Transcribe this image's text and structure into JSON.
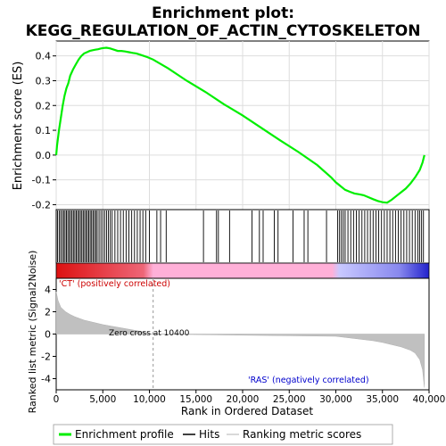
{
  "chart_data": {
    "type": "line",
    "title_line1": "Enrichment plot:",
    "title_line2": "KEGG_REGULATION_OF_ACTIN_CYTOSKELETON",
    "es_panel": {
      "ylabel": "Enrichment score (ES)",
      "ylim": [
        -0.22,
        0.46
      ],
      "yticks": [
        "0.4",
        "0.3",
        "0.2",
        "0.1",
        "0.0",
        "-0.1",
        "-0.2"
      ],
      "ytick_values": [
        0.4,
        0.3,
        0.2,
        0.1,
        0.0,
        -0.1,
        -0.2
      ],
      "grid": true,
      "series": [
        {
          "name": "Enrichment profile",
          "color": "#00ee00",
          "x": [
            0,
            100,
            300,
            500,
            700,
            900,
            1100,
            1300,
            1500,
            1800,
            2100,
            2400,
            2700,
            3000,
            3300,
            3600,
            3900,
            4200,
            4500,
            4800,
            5100,
            5400,
            5800,
            6200,
            6600,
            7000,
            7400,
            7800,
            8200,
            8600,
            9000,
            9400,
            9800,
            10400,
            12000,
            14000,
            16000,
            18000,
            20000,
            22000,
            24000,
            26000,
            28000,
            29500,
            30000,
            30500,
            31000,
            31500,
            32000,
            32500,
            33000,
            33500,
            34000,
            34500,
            35000,
            35500,
            36000,
            36500,
            37000,
            37500,
            38000,
            38500,
            39000,
            39300,
            39500
          ],
          "y": [
            0.0,
            0.04,
            0.1,
            0.15,
            0.2,
            0.24,
            0.27,
            0.29,
            0.32,
            0.345,
            0.365,
            0.385,
            0.4,
            0.41,
            0.415,
            0.42,
            0.423,
            0.425,
            0.427,
            0.43,
            0.432,
            0.433,
            0.43,
            0.425,
            0.42,
            0.42,
            0.418,
            0.415,
            0.412,
            0.41,
            0.405,
            0.4,
            0.395,
            0.385,
            0.35,
            0.3,
            0.255,
            0.205,
            0.16,
            0.11,
            0.06,
            0.012,
            -0.04,
            -0.09,
            -0.11,
            -0.125,
            -0.14,
            -0.148,
            -0.155,
            -0.158,
            -0.162,
            -0.17,
            -0.178,
            -0.185,
            -0.19,
            -0.192,
            -0.18,
            -0.165,
            -0.15,
            -0.135,
            -0.115,
            -0.09,
            -0.06,
            -0.03,
            0.0
          ]
        }
      ]
    },
    "hits_panel": {
      "legend_name": "Hits",
      "positions": [
        150,
        320,
        480,
        650,
        800,
        950,
        1100,
        1250,
        1400,
        1550,
        1700,
        1850,
        2000,
        2150,
        2300,
        2450,
        2600,
        2750,
        2900,
        3050,
        3200,
        3350,
        3500,
        3650,
        3800,
        3950,
        4100,
        4250,
        4400,
        4600,
        4800,
        5000,
        5200,
        5400,
        5600,
        5800,
        6000,
        6300,
        6600,
        6900,
        7200,
        7500,
        7800,
        8100,
        8400,
        8700,
        9000,
        9300,
        9600,
        10000,
        10800,
        11200,
        11800,
        15800,
        17200,
        17400,
        18600,
        21000,
        21800,
        22200,
        23400,
        23800,
        25400,
        26600,
        27000,
        29000,
        30200,
        30400,
        30600,
        30800,
        31000,
        31300,
        31600,
        31900,
        32200,
        32500,
        32800,
        33100,
        33400,
        33700,
        34000,
        34300,
        34600,
        34900,
        35200,
        35500,
        35800,
        36100,
        36400,
        36700,
        37000,
        37300,
        37600,
        37900,
        38200,
        38500,
        38800,
        39000,
        39200,
        39400
      ]
    },
    "rank_bar": {
      "colors": [
        "#dd1111",
        "#ffb0d8",
        "#c8c8ff",
        "#2222cc"
      ],
      "split_rank": 10400
    },
    "metric_panel": {
      "ylabel": "Ranked list metric (Signal2Noise)",
      "ylim": [
        -5,
        5
      ],
      "yticks": [
        "4",
        "2",
        "0",
        "-2",
        "-4"
      ],
      "ytick_values": [
        4,
        2,
        0,
        -2,
        -4
      ],
      "legend_name": "Ranking metric scores",
      "x": [
        0,
        200,
        500,
        1000,
        1500,
        2000,
        3000,
        4000,
        5000,
        6000,
        7000,
        8000,
        9000,
        10000,
        10400,
        15000,
        20000,
        25000,
        30000,
        32000,
        34000,
        35000,
        36000,
        37000,
        38000,
        38500,
        39000,
        39300,
        39500
      ],
      "y": [
        3.8,
        3.0,
        2.4,
        2.0,
        1.75,
        1.55,
        1.25,
        1.05,
        0.85,
        0.7,
        0.55,
        0.4,
        0.25,
        0.05,
        0.0,
        -0.05,
        -0.1,
        -0.15,
        -0.2,
        -0.4,
        -0.6,
        -0.75,
        -0.95,
        -1.15,
        -1.45,
        -1.7,
        -2.3,
        -3.2,
        -4.8
      ],
      "annotations": {
        "positive": "'CT' (positively correlated)",
        "negative": "'RAS' (negatively correlated)",
        "zero_cross": "Zero cross at 10400"
      },
      "zero_cross_rank": 10400
    },
    "x_axis": {
      "label": "Rank in Ordered Dataset",
      "xlim": [
        0,
        40000
      ],
      "tick_values": [
        0,
        5000,
        10000,
        15000,
        20000,
        25000,
        30000,
        35000,
        40000
      ],
      "tick_labels": [
        "0",
        "5,000",
        "10,000",
        "15,000",
        "20,000",
        "25,000",
        "30,000",
        "35,000",
        "40,000"
      ]
    },
    "legend": {
      "position": "bottom",
      "entries": [
        "Enrichment profile",
        "Hits",
        "Ranking metric scores"
      ]
    }
  }
}
